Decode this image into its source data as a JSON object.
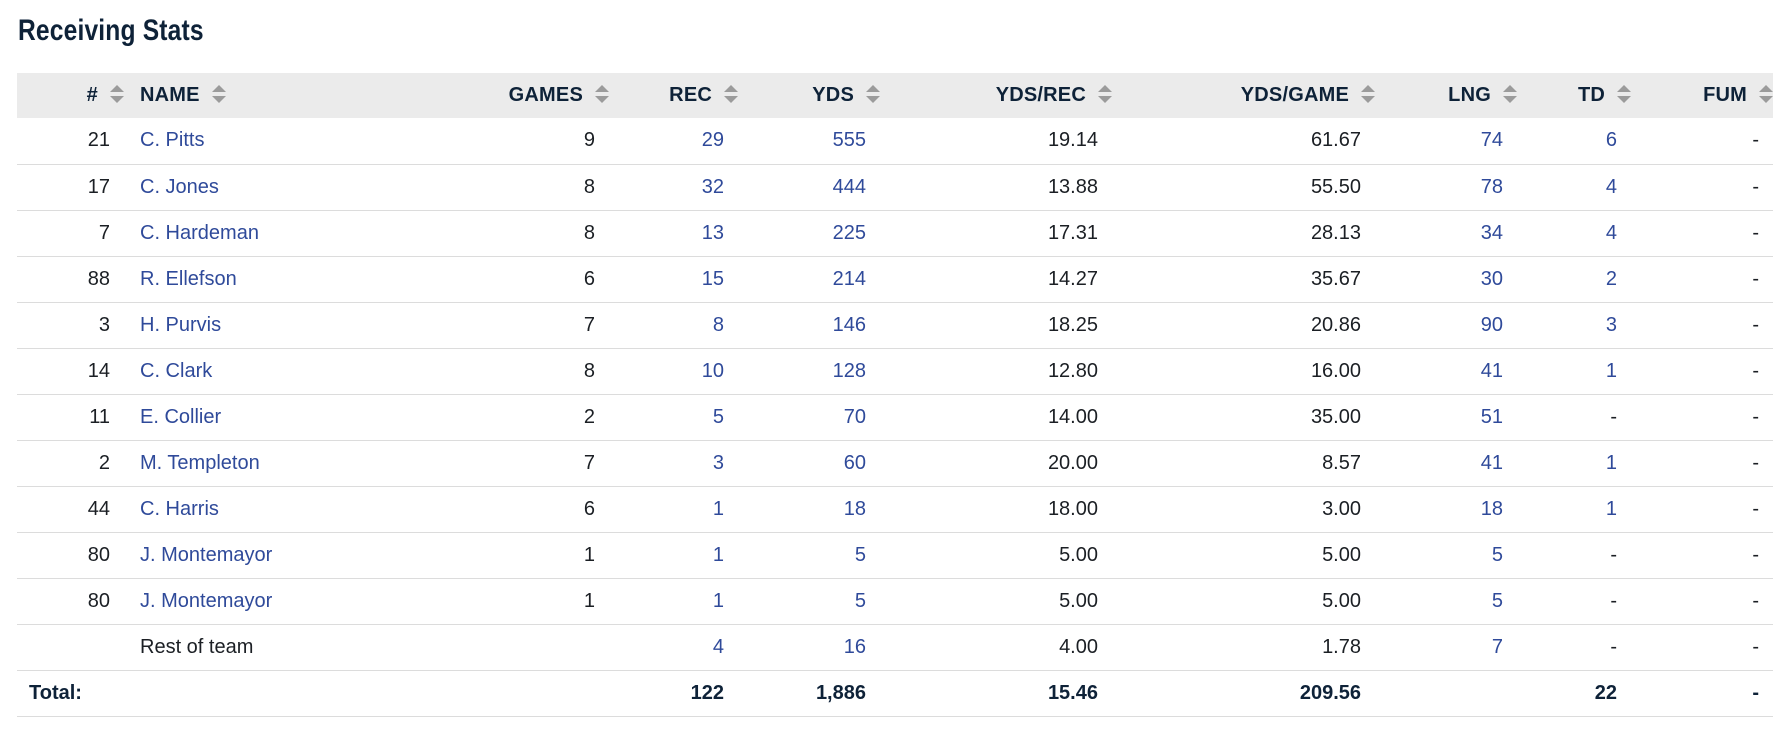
{
  "title": "Receiving Stats",
  "colors": {
    "link": "#2f4a9a",
    "header_bg": "#ebebeb",
    "title": "#0e2238"
  },
  "columns": [
    "#",
    "NAME",
    "GAMES",
    "REC",
    "YDS",
    "YDS/REC",
    "YDS/GAME",
    "LNG",
    "TD",
    "FUM"
  ],
  "rows": [
    {
      "num": "21",
      "name": "C. Pitts",
      "games": "9",
      "rec": "29",
      "yds": "555",
      "ydsrec": "19.14",
      "ydsgame": "61.67",
      "lng": "74",
      "td": "6",
      "fum": "-"
    },
    {
      "num": "17",
      "name": "C. Jones",
      "games": "8",
      "rec": "32",
      "yds": "444",
      "ydsrec": "13.88",
      "ydsgame": "55.50",
      "lng": "78",
      "td": "4",
      "fum": "-"
    },
    {
      "num": "7",
      "name": "C. Hardeman",
      "games": "8",
      "rec": "13",
      "yds": "225",
      "ydsrec": "17.31",
      "ydsgame": "28.13",
      "lng": "34",
      "td": "4",
      "fum": "-"
    },
    {
      "num": "88",
      "name": "R. Ellefson",
      "games": "6",
      "rec": "15",
      "yds": "214",
      "ydsrec": "14.27",
      "ydsgame": "35.67",
      "lng": "30",
      "td": "2",
      "fum": "-"
    },
    {
      "num": "3",
      "name": "H. Purvis",
      "games": "7",
      "rec": "8",
      "yds": "146",
      "ydsrec": "18.25",
      "ydsgame": "20.86",
      "lng": "90",
      "td": "3",
      "fum": "-"
    },
    {
      "num": "14",
      "name": "C. Clark",
      "games": "8",
      "rec": "10",
      "yds": "128",
      "ydsrec": "12.80",
      "ydsgame": "16.00",
      "lng": "41",
      "td": "1",
      "fum": "-"
    },
    {
      "num": "11",
      "name": "E. Collier",
      "games": "2",
      "rec": "5",
      "yds": "70",
      "ydsrec": "14.00",
      "ydsgame": "35.00",
      "lng": "51",
      "td": "-",
      "fum": "-"
    },
    {
      "num": "2",
      "name": "M. Templeton",
      "games": "7",
      "rec": "3",
      "yds": "60",
      "ydsrec": "20.00",
      "ydsgame": "8.57",
      "lng": "41",
      "td": "1",
      "fum": "-"
    },
    {
      "num": "44",
      "name": "C. Harris",
      "games": "6",
      "rec": "1",
      "yds": "18",
      "ydsrec": "18.00",
      "ydsgame": "3.00",
      "lng": "18",
      "td": "1",
      "fum": "-"
    },
    {
      "num": "80",
      "name": "J. Montemayor",
      "games": "1",
      "rec": "1",
      "yds": "5",
      "ydsrec": "5.00",
      "ydsgame": "5.00",
      "lng": "5",
      "td": "-",
      "fum": "-"
    },
    {
      "num": "80",
      "name": "J. Montemayor",
      "games": "1",
      "rec": "1",
      "yds": "5",
      "ydsrec": "5.00",
      "ydsgame": "5.00",
      "lng": "5",
      "td": "-",
      "fum": "-"
    }
  ],
  "rest": {
    "name": "Rest of team",
    "rec": "4",
    "yds": "16",
    "ydsrec": "4.00",
    "ydsgame": "1.78",
    "lng": "7",
    "td": "-",
    "fum": "-"
  },
  "total": {
    "label": "Total:",
    "rec": "122",
    "yds": "1,886",
    "ydsrec": "15.46",
    "ydsgame": "209.56",
    "td": "22",
    "fum": "-"
  }
}
